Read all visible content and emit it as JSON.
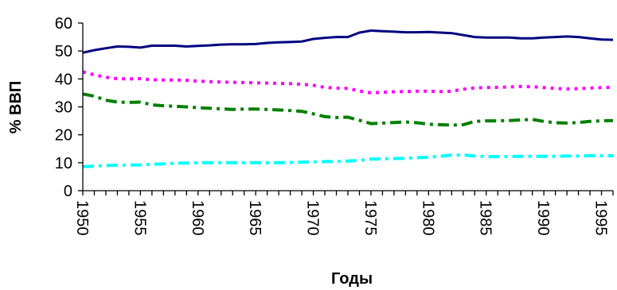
{
  "chart_data": {
    "type": "line",
    "xlabel": "Годы",
    "ylabel": "% ВВП",
    "xlim": [
      1950,
      1996
    ],
    "ylim": [
      0,
      60
    ],
    "y_ticks": [
      0,
      10,
      20,
      30,
      40,
      50,
      60
    ],
    "x_ticks": [
      1950,
      1955,
      1960,
      1965,
      1970,
      1975,
      1980,
      1985,
      1990,
      1995
    ],
    "grid": false,
    "legend": "none",
    "x": [
      1950,
      1951,
      1952,
      1953,
      1954,
      1955,
      1956,
      1957,
      1958,
      1959,
      1960,
      1961,
      1962,
      1963,
      1964,
      1965,
      1966,
      1967,
      1968,
      1969,
      1970,
      1971,
      1972,
      1973,
      1974,
      1975,
      1976,
      1977,
      1978,
      1979,
      1980,
      1981,
      1982,
      1983,
      1984,
      1985,
      1986,
      1987,
      1988,
      1989,
      1990,
      1991,
      1992,
      1993,
      1994,
      1995,
      1996
    ],
    "series": [
      {
        "color": "#000080",
        "dash": "solid",
        "values": [
          49.4,
          50.3,
          51.0,
          51.6,
          51.5,
          51.2,
          51.9,
          51.9,
          51.9,
          51.6,
          51.8,
          52.0,
          52.3,
          52.4,
          52.4,
          52.5,
          52.9,
          53.1,
          53.2,
          53.4,
          54.3,
          54.7,
          55.0,
          55.0,
          56.6,
          57.3,
          57.1,
          56.9,
          56.7,
          56.7,
          56.8,
          56.6,
          56.4,
          55.7,
          55.0,
          54.8,
          54.8,
          54.8,
          54.5,
          54.5,
          54.8,
          55.0,
          55.2,
          55.0,
          54.5,
          54.1,
          54.0
        ]
      },
      {
        "color": "#ff00ff",
        "dash": "dot",
        "values": [
          42.5,
          41.5,
          40.6,
          40.1,
          40.0,
          40.1,
          39.7,
          39.6,
          39.6,
          39.5,
          39.2,
          39.0,
          38.9,
          38.8,
          38.7,
          38.6,
          38.5,
          38.4,
          38.3,
          38.1,
          37.7,
          37.0,
          36.7,
          36.6,
          35.7,
          35.0,
          35.2,
          35.4,
          35.5,
          35.6,
          35.6,
          35.5,
          35.6,
          36.3,
          36.8,
          36.9,
          37.0,
          37.1,
          37.3,
          37.2,
          36.9,
          36.6,
          36.4,
          36.5,
          36.7,
          36.9,
          37.0
        ]
      },
      {
        "color": "#008000",
        "dash": "dashdot",
        "values": [
          34.6,
          33.8,
          32.4,
          31.7,
          31.6,
          31.7,
          30.7,
          30.4,
          30.2,
          30.0,
          29.7,
          29.5,
          29.3,
          29.1,
          29.2,
          29.2,
          29.1,
          28.9,
          28.7,
          28.4,
          27.5,
          26.5,
          26.2,
          26.3,
          25.2,
          24.0,
          24.2,
          24.4,
          24.6,
          24.3,
          23.8,
          23.6,
          23.5,
          23.6,
          24.8,
          25.0,
          25.0,
          25.1,
          25.3,
          25.5,
          24.8,
          24.3,
          24.2,
          24.4,
          24.8,
          25.0,
          25.1
        ]
      },
      {
        "color": "#00ffff",
        "dash": "dashdot",
        "values": [
          8.6,
          8.8,
          9.0,
          9.1,
          9.2,
          9.2,
          9.4,
          9.6,
          9.8,
          9.9,
          10.0,
          10.0,
          10.0,
          10.0,
          10.0,
          10.0,
          10.0,
          10.0,
          10.1,
          10.2,
          10.3,
          10.4,
          10.5,
          10.6,
          10.9,
          11.3,
          11.4,
          11.5,
          11.6,
          11.8,
          12.0,
          12.3,
          12.7,
          12.8,
          12.4,
          12.2,
          12.2,
          12.2,
          12.3,
          12.3,
          12.3,
          12.3,
          12.4,
          12.4,
          12.5,
          12.5,
          12.5
        ]
      }
    ]
  }
}
